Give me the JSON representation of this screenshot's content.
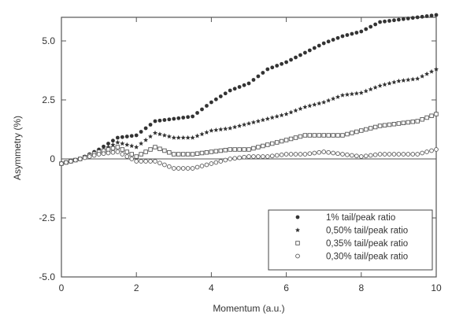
{
  "chart_data": {
    "type": "scatter",
    "title": "",
    "xlabel": "Momentum (a.u.)",
    "ylabel": "Asymmetry (%)",
    "xlim": [
      0,
      10
    ],
    "ylim": [
      -5,
      6
    ],
    "x_ticks": [
      0,
      2,
      4,
      6,
      8,
      10
    ],
    "y_ticks": [
      -5,
      -2.5,
      0,
      2.5,
      5
    ],
    "x_tick_labels": [
      "0",
      "2",
      "4",
      "6",
      "8",
      "10"
    ],
    "y_tick_labels": [
      "-5.0",
      "-2.5",
      "0",
      "2.5",
      "5.0"
    ],
    "grid": false,
    "reference_line_y": 0,
    "legend_position": "bottom-right",
    "series": [
      {
        "name": "1% tail/peak ratio",
        "marker": "filled-circle",
        "x": [
          0,
          0.5,
          1,
          1.5,
          2,
          2.5,
          3,
          3.5,
          4,
          4.5,
          5,
          5.5,
          6,
          6.5,
          7,
          7.5,
          8,
          8.5,
          9,
          9.5,
          10
        ],
        "y": [
          -0.2,
          0.0,
          0.4,
          0.9,
          1.0,
          1.6,
          1.7,
          1.8,
          2.4,
          2.9,
          3.2,
          3.8,
          4.1,
          4.5,
          4.9,
          5.2,
          5.4,
          5.8,
          5.9,
          6.0,
          6.1
        ]
      },
      {
        "name": "0,50% tail/peak ratio",
        "marker": "filled-star",
        "x": [
          0,
          0.5,
          1,
          1.5,
          2,
          2.5,
          3,
          3.5,
          4,
          4.5,
          5,
          5.5,
          6,
          6.5,
          7,
          7.5,
          8,
          8.5,
          9,
          9.5,
          10
        ],
        "y": [
          -0.2,
          0.0,
          0.3,
          0.7,
          0.5,
          1.1,
          0.9,
          0.9,
          1.2,
          1.3,
          1.5,
          1.7,
          1.9,
          2.2,
          2.4,
          2.7,
          2.8,
          3.1,
          3.3,
          3.4,
          3.8
        ]
      },
      {
        "name": "0,35% tail/peak ratio",
        "marker": "open-square",
        "x": [
          0,
          0.5,
          1,
          1.5,
          2,
          2.5,
          3,
          3.5,
          4,
          4.5,
          5,
          5.5,
          6,
          6.5,
          7,
          7.5,
          8,
          8.5,
          9,
          9.5,
          10
        ],
        "y": [
          -0.2,
          0.0,
          0.3,
          0.5,
          0.1,
          0.5,
          0.2,
          0.2,
          0.3,
          0.4,
          0.4,
          0.6,
          0.8,
          1.0,
          1.0,
          1.0,
          1.2,
          1.4,
          1.5,
          1.6,
          1.9
        ]
      },
      {
        "name": "0,30% tail/peak ratio",
        "marker": "open-circle",
        "x": [
          0,
          0.5,
          1,
          1.5,
          2,
          2.5,
          3,
          3.5,
          4,
          4.5,
          5,
          5.5,
          6,
          6.5,
          7,
          7.5,
          8,
          8.5,
          9,
          9.5,
          10
        ],
        "y": [
          -0.2,
          0.0,
          0.2,
          0.3,
          -0.1,
          -0.1,
          -0.4,
          -0.4,
          -0.2,
          0.0,
          0.1,
          0.1,
          0.2,
          0.2,
          0.3,
          0.2,
          0.1,
          0.2,
          0.2,
          0.2,
          0.4
        ]
      }
    ]
  }
}
